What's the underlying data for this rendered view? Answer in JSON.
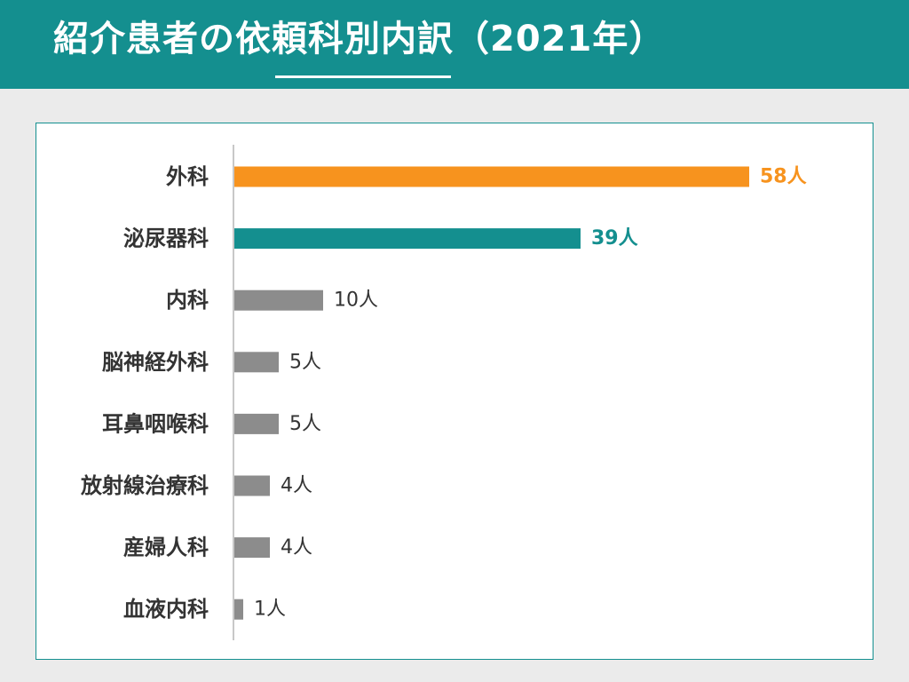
{
  "header": {
    "title": "紹介患者の依頼科別内訳（2021年）"
  },
  "colors": {
    "header_bg": "#148f8f",
    "highlight_1": "#f7931e",
    "highlight_2": "#148f8f",
    "default_bar": "#8c8c8c",
    "axis": "#c8c8c8",
    "label_text": "#333333"
  },
  "chart_data": {
    "type": "bar",
    "orientation": "horizontal",
    "title": "",
    "xlabel": "",
    "ylabel": "",
    "xlim": [
      0,
      58
    ],
    "grid": false,
    "categories": [
      "外科",
      "泌尿器科",
      "内科",
      "脳神経外科",
      "耳鼻咽喉科",
      "放射線治療科",
      "産婦人科",
      "血液内科"
    ],
    "values": [
      58,
      39,
      10,
      5,
      5,
      4,
      4,
      1
    ],
    "value_labels": [
      "58人",
      "39人",
      "10人",
      "5人",
      "5人",
      "4人",
      "4人",
      "1人"
    ],
    "bar_colors": [
      "#f7931e",
      "#148f8f",
      "#8c8c8c",
      "#8c8c8c",
      "#8c8c8c",
      "#8c8c8c",
      "#8c8c8c",
      "#8c8c8c"
    ],
    "label_emphasis": [
      true,
      true,
      false,
      false,
      false,
      false,
      false,
      false
    ]
  }
}
